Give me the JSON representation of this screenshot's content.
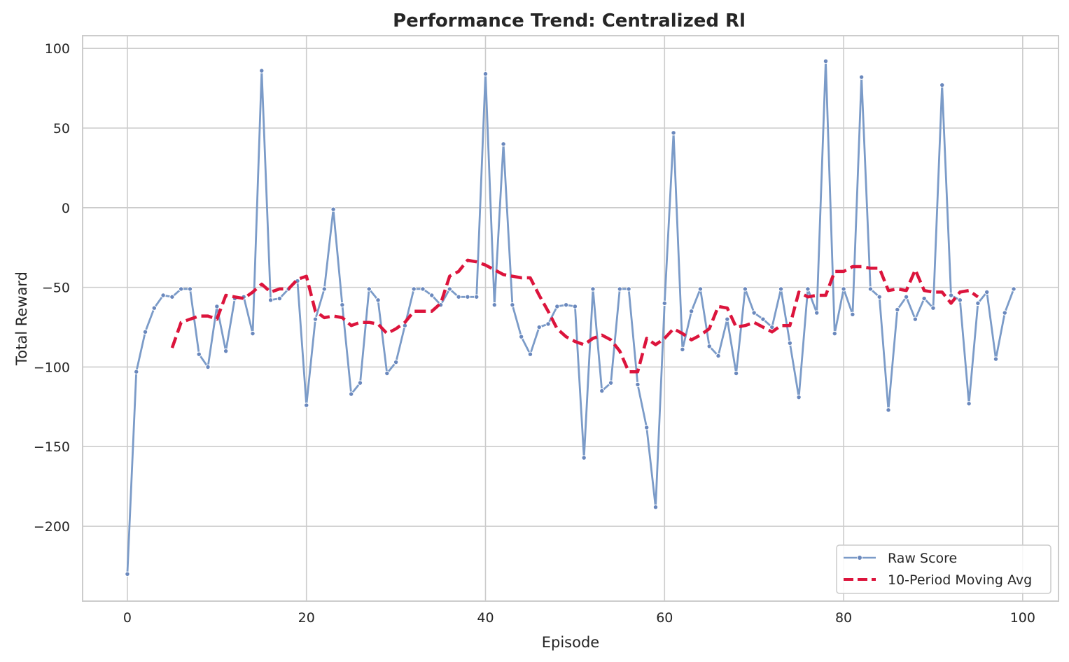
{
  "chart_data": {
    "type": "line",
    "title": "Performance Trend: Centralized Rl",
    "xlabel": "Episode",
    "ylabel": "Total Reward",
    "xlim": [
      -5,
      104
    ],
    "ylim": [
      -247,
      108
    ],
    "xticks": [
      0,
      20,
      40,
      60,
      80,
      100
    ],
    "yticks": [
      -200,
      -150,
      -100,
      -50,
      0,
      50,
      100
    ],
    "xtick_labels": [
      "0",
      "20",
      "40",
      "60",
      "80",
      "100"
    ],
    "ytick_labels": [
      "−200",
      "−150",
      "−100",
      "−50",
      "0",
      "50",
      "100"
    ],
    "grid": true,
    "legend_position": "lower-right",
    "series": [
      {
        "name": "Raw Score",
        "color": "#7b9bc8",
        "style": "solid-with-markers",
        "x": [
          0,
          1,
          2,
          3,
          4,
          5,
          6,
          7,
          8,
          9,
          10,
          11,
          12,
          13,
          14,
          15,
          16,
          17,
          18,
          19,
          20,
          21,
          22,
          23,
          24,
          25,
          26,
          27,
          28,
          29,
          30,
          31,
          32,
          33,
          34,
          35,
          36,
          37,
          38,
          39,
          40,
          41,
          42,
          43,
          44,
          45,
          46,
          47,
          48,
          49,
          50,
          51,
          52,
          53,
          54,
          55,
          56,
          57,
          58,
          59,
          60,
          61,
          62,
          63,
          64,
          65,
          66,
          67,
          68,
          69,
          70,
          71,
          72,
          73,
          74,
          75,
          76,
          77,
          78,
          79,
          80,
          81,
          82,
          83,
          84,
          85,
          86,
          87,
          88,
          89,
          90,
          91,
          92,
          93,
          94,
          95,
          96,
          97,
          98,
          99
        ],
        "y": [
          -230,
          -103,
          -78,
          -63,
          -55,
          -56,
          -51,
          -51,
          -92,
          -100,
          -62,
          -90,
          -57,
          -56,
          -79,
          86,
          -58,
          -57,
          -51,
          -46,
          -124,
          -70,
          -51,
          -1,
          -61,
          -117,
          -110,
          -51,
          -58,
          -104,
          -97,
          -74,
          -51,
          -51,
          -55,
          -61,
          -51,
          -56,
          -56,
          -56,
          84,
          -61,
          40,
          -61,
          -81,
          -92,
          -75,
          -73,
          -62,
          -61,
          -62,
          -157,
          -51,
          -115,
          -110,
          -51,
          -51,
          -111,
          -138,
          -188,
          -60,
          47,
          -89,
          -65,
          -51,
          -87,
          -93,
          -70,
          -104,
          -51,
          -66,
          -70,
          -75,
          -51,
          -85,
          -119,
          -51,
          -66,
          92,
          -79,
          -51,
          -67,
          82,
          -51,
          -56,
          -127,
          -64,
          -56,
          -70,
          -57,
          -63,
          77,
          -55,
          -58,
          -123,
          -60,
          -53,
          -95,
          -66,
          -51
        ]
      },
      {
        "name": "10-Period Moving Avg",
        "color": "#dc143c",
        "style": "dashed",
        "x": [
          5,
          6,
          7,
          8,
          9,
          10,
          11,
          12,
          13,
          14,
          15,
          16,
          17,
          18,
          19,
          20,
          21,
          22,
          23,
          24,
          25,
          26,
          27,
          28,
          29,
          30,
          31,
          32,
          33,
          34,
          35,
          36,
          37,
          38,
          39,
          40,
          41,
          42,
          43,
          44,
          45,
          46,
          47,
          48,
          49,
          50,
          51,
          52,
          53,
          54,
          55,
          56,
          57,
          58,
          59,
          60,
          61,
          62,
          63,
          64,
          65,
          66,
          67,
          68,
          69,
          70,
          71,
          72,
          73,
          74,
          75,
          76,
          77,
          78,
          79,
          80,
          81,
          82,
          83,
          84,
          85,
          86,
          87,
          88,
          89,
          90,
          91,
          92,
          93,
          94,
          95
        ],
        "y": [
          -88,
          -72,
          -70,
          -68,
          -68,
          -70,
          -55,
          -56,
          -57,
          -53,
          -48,
          -53,
          -51,
          -51,
          -45,
          -43,
          -65,
          -69,
          -68,
          -69,
          -74,
          -72,
          -72,
          -73,
          -79,
          -76,
          -72,
          -65,
          -65,
          -65,
          -60,
          -43,
          -40,
          -33,
          -34,
          -36,
          -39,
          -42,
          -43,
          -44,
          -44,
          -55,
          -65,
          -76,
          -81,
          -84,
          -86,
          -82,
          -80,
          -83,
          -90,
          -103,
          -103,
          -82,
          -86,
          -82,
          -76,
          -79,
          -83,
          -80,
          -76,
          -62,
          -63,
          -75,
          -74,
          -72,
          -75,
          -78,
          -74,
          -74,
          -53,
          -56,
          -55,
          -55,
          -40,
          -40,
          -37,
          -37,
          -38,
          -38,
          -52,
          -51,
          -52,
          -39,
          -52,
          -53,
          -53,
          -60,
          -53,
          -52,
          -56
        ]
      }
    ]
  }
}
